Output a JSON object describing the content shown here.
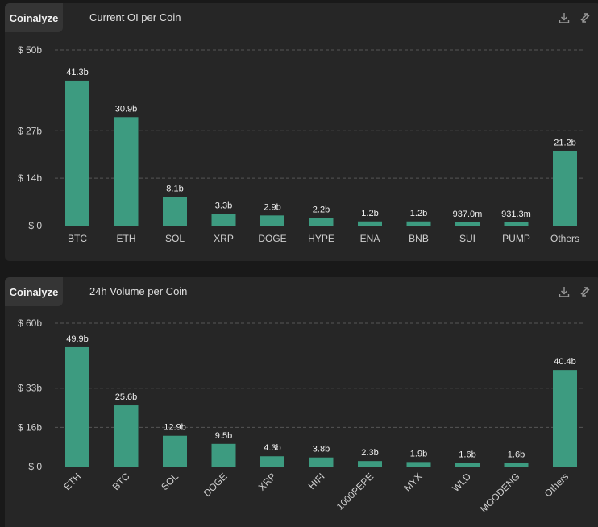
{
  "colors": {
    "bar": "#3d9b80",
    "grid": "#555555",
    "axis": "#6a6a6a",
    "text": "#d0d0d0",
    "label": "#f0f0f0"
  },
  "panels": [
    {
      "brand": "Coinalyze",
      "title": "Current OI per Coin",
      "icons": [
        "download-icon",
        "refresh-icon"
      ]
    },
    {
      "brand": "Coinalyze",
      "title": "24h Volume per Coin",
      "icons": [
        "download-icon",
        "refresh-icon"
      ]
    }
  ],
  "chart_data": [
    {
      "type": "bar",
      "title": "Current OI per Coin",
      "categories": [
        "BTC",
        "ETH",
        "SOL",
        "XRP",
        "DOGE",
        "HYPE",
        "ENA",
        "BNB",
        "SUI",
        "PUMP",
        "Others"
      ],
      "values": [
        41.3,
        30.9,
        8.1,
        3.3,
        2.9,
        2.2,
        1.2,
        1.2,
        0.937,
        0.9313,
        21.2
      ],
      "value_labels": [
        "41.3b",
        "30.9b",
        "8.1b",
        "3.3b",
        "2.9b",
        "2.2b",
        "1.2b",
        "1.2b",
        "937.0m",
        "931.3m",
        "21.2b"
      ],
      "unit": "billions USD",
      "y_ticks": [
        {
          "value": 0,
          "label": "$ 0"
        },
        {
          "value": 13.5,
          "label": "$ 14b"
        },
        {
          "value": 27,
          "label": "$ 27b"
        },
        {
          "value": 50,
          "label": "$ 50b"
        }
      ],
      "ylim": [
        0,
        50
      ],
      "grid": true,
      "tick_rotation": 0
    },
    {
      "type": "bar",
      "title": "24h Volume per Coin",
      "categories": [
        "ETH",
        "BTC",
        "SOL",
        "DOGE",
        "XRP",
        "HIFI",
        "1000PEPE",
        "MYX",
        "WLD",
        "MOODENG",
        "Others"
      ],
      "values": [
        49.9,
        25.6,
        12.9,
        9.5,
        4.3,
        3.8,
        2.3,
        1.9,
        1.6,
        1.6,
        40.4
      ],
      "value_labels": [
        "49.9b",
        "25.6b",
        "12.9b",
        "9.5b",
        "4.3b",
        "3.8b",
        "2.3b",
        "1.9b",
        "1.6b",
        "1.6b",
        "40.4b"
      ],
      "unit": "billions USD",
      "y_ticks": [
        {
          "value": 0,
          "label": "$ 0"
        },
        {
          "value": 16.4,
          "label": "$ 16b"
        },
        {
          "value": 32.8,
          "label": "$ 33b"
        },
        {
          "value": 60,
          "label": "$ 60b"
        }
      ],
      "ylim": [
        0,
        60
      ],
      "grid": true,
      "tick_rotation": -45
    }
  ]
}
